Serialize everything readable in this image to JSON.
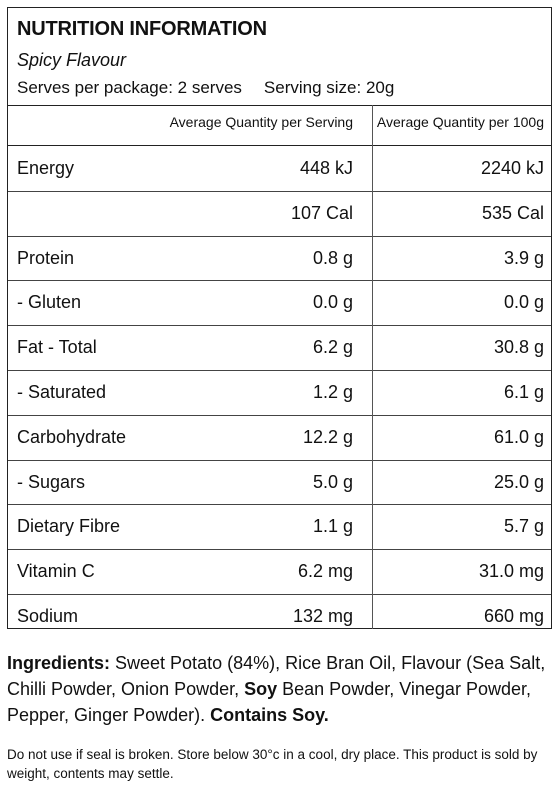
{
  "panel": {
    "title": "NUTRITION INFORMATION",
    "flavour": "Spicy Flavour",
    "serves_per_package": "Serves per package: 2 serves",
    "serving_size": "Serving size: 20g",
    "col_serving": "Average Quantity per Serving",
    "col_100g": "Average Quantity per 100g",
    "rows": [
      {
        "label": "Energy",
        "per_serving": "448 kJ",
        "per_100g": "2240 kJ"
      },
      {
        "label": "",
        "per_serving": "107 Cal",
        "per_100g": "535 Cal"
      },
      {
        "label": "Protein",
        "per_serving": "0.8 g",
        "per_100g": "3.9 g"
      },
      {
        "label": " - Gluten",
        "per_serving": "0.0 g",
        "per_100g": "0.0 g"
      },
      {
        "label": "Fat  - Total",
        "per_serving": "6.2 g",
        "per_100g": "30.8 g"
      },
      {
        "label": " - Saturated",
        "per_serving": "1.2 g",
        "per_100g": "6.1 g"
      },
      {
        "label": "Carbohydrate",
        "per_serving": "12.2 g",
        "per_100g": "61.0 g"
      },
      {
        "label": " - Sugars",
        "per_serving": "5.0 g",
        "per_100g": "25.0 g"
      },
      {
        "label": "Dietary Fibre",
        "per_serving": "1.1 g",
        "per_100g": "5.7 g"
      },
      {
        "label": "Vitamin C",
        "per_serving": "6.2 mg",
        "per_100g": "31.0 mg"
      },
      {
        "label": "Sodium",
        "per_serving": "132 mg",
        "per_100g": "660 mg"
      }
    ]
  },
  "ingredients": {
    "heading": "Ingredients:",
    "text1": " Sweet Potato (84%), Rice Bran Oil, Flavour (Sea Salt, Chilli Powder, Onion Powder, ",
    "soy": "Soy",
    "text2": " Bean Powder, Vinegar Powder, Pepper, Ginger Powder). ",
    "contains": "Contains Soy."
  },
  "footer": "Do not use if seal is broken. Store below 30°c in a cool, dry place. This product is sold by weight, contents may settle."
}
